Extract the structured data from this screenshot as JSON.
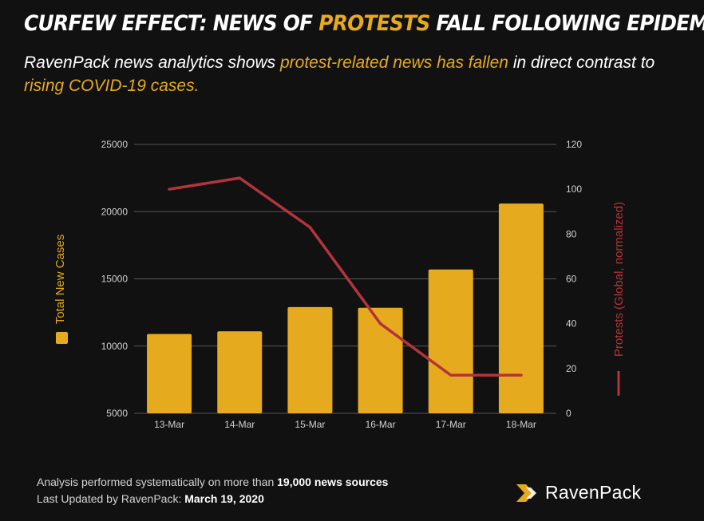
{
  "header": {
    "title_pre": "CURFEW EFFECT: NEWS OF ",
    "title_hl": "PROTESTS",
    "title_post": " FALL FOLLOWING EPIDEMIC",
    "sub_pre": "RavenPack news analytics shows ",
    "sub_hl1": "protest-related news has fallen",
    "sub_mid": " in direct contrast to ",
    "sub_hl2": "rising COVID-19 cases."
  },
  "colors": {
    "accent": "#E6AA1E",
    "line": "#B3343A",
    "background": "#111111"
  },
  "chart_data": {
    "type": "bar+line",
    "categories": [
      "13-Mar",
      "14-Mar",
      "15-Mar",
      "16-Mar",
      "17-Mar",
      "18-Mar"
    ],
    "series": [
      {
        "name": "Total New Cases",
        "type": "bar",
        "axis": "left",
        "values": [
          10900,
          11100,
          12900,
          12850,
          15700,
          20600
        ]
      },
      {
        "name": "Protests (Global, normalized)",
        "type": "line",
        "axis": "right",
        "values": [
          100,
          105,
          83,
          40,
          17,
          17
        ]
      }
    ],
    "y_left": {
      "label": "Total New Cases",
      "min": 5000,
      "max": 25000,
      "ticks": [
        5000,
        10000,
        15000,
        20000,
        25000
      ]
    },
    "y_right": {
      "label": "Protests (Global, normalized)",
      "min": 0,
      "max": 120,
      "ticks": [
        0,
        20,
        40,
        60,
        80,
        100,
        120
      ]
    },
    "grid": true
  },
  "footer": {
    "line1_pre": "Analysis performed systematically on more than ",
    "line1_bold": "19,000 news sources",
    "line2_pre": "Last Updated by RavenPack: ",
    "line2_hl": "March 19, 2020"
  },
  "logo": {
    "text": "RavenPack",
    "icon": "ravenpack-logo-icon"
  }
}
